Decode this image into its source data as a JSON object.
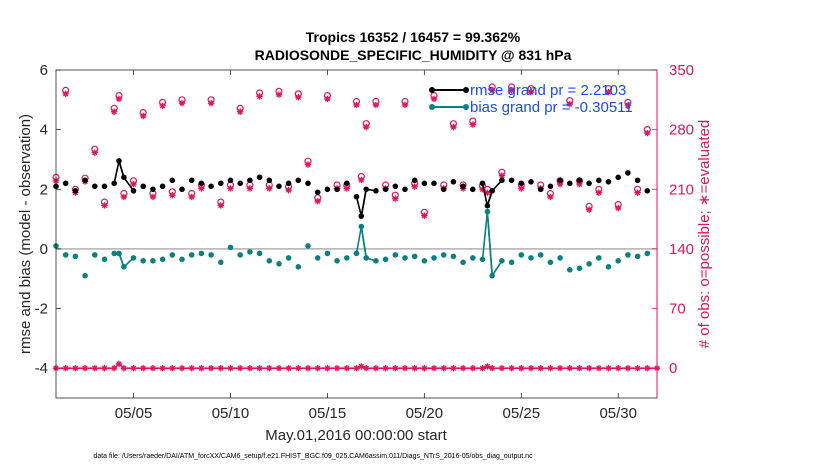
{
  "chart_data": {
    "type": "line",
    "title": "Tropics 16352 / 16457 = 99.362%",
    "subtitle": "RADIOSONDE_SPECIFIC_HUMIDITY @ 831 hPa",
    "xlabel": "May.01,2016 00:00:00 start",
    "ylabel": "rmse and bias (model - observation)",
    "y2label": "# of obs: o=possible; ∗=evaluated",
    "footnote": "data file: /Users/raeder/DAI/ATM_forcXX/CAM6_setup/f.e21.FHIST_BGC.f09_025.CAM6assim.011/Diags_NTrS_2016-05/obs_diag_output.nc",
    "xlim": [
      1.0,
      32.0
    ],
    "ylim": [
      -5,
      6
    ],
    "y2lim": [
      -35,
      350
    ],
    "xticks": [
      5,
      10,
      15,
      20,
      25,
      30
    ],
    "xtick_labels": [
      "05/05",
      "05/10",
      "05/15",
      "05/20",
      "05/25",
      "05/30"
    ],
    "yticks": [
      -4,
      -2,
      0,
      2,
      4,
      6
    ],
    "y2ticks": [
      0,
      70,
      140,
      210,
      280,
      350
    ],
    "colors": {
      "rmse": "#000000",
      "bias": "#0a8080",
      "obs": "#e0165a",
      "zero": "#b0b0b0",
      "legend_text": "#1a4cf0"
    },
    "legend": [
      "rmse grand pr = 2.2103",
      "bias grand pr = -0.30511"
    ],
    "series": [
      {
        "name": "rmse grand pr = 2.2103",
        "axis": "left",
        "x": [
          1.0,
          1.5,
          2.0,
          2.5,
          3.0,
          3.5,
          4.0,
          4.25,
          4.5,
          5.0,
          5.5,
          6.0,
          6.5,
          7.0,
          7.5,
          8.0,
          8.5,
          9.0,
          9.5,
          10.0,
          10.5,
          11.0,
          11.5,
          12.0,
          12.5,
          13.0,
          13.5,
          14.0,
          14.5,
          15.0,
          15.5,
          16.0,
          16.5,
          16.75,
          17.0,
          17.5,
          18.0,
          18.5,
          19.0,
          19.5,
          20.0,
          20.5,
          21.0,
          21.5,
          22.0,
          22.5,
          23.0,
          23.25,
          23.5,
          24.0,
          24.5,
          25.0,
          25.5,
          26.0,
          26.5,
          27.0,
          27.5,
          28.0,
          28.5,
          29.0,
          29.5,
          30.0,
          30.5,
          31.0,
          31.5
        ],
        "values": [
          2.1,
          2.2,
          1.95,
          2.3,
          2.1,
          2.1,
          2.2,
          2.95,
          2.4,
          1.95,
          2.1,
          2.0,
          2.1,
          2.3,
          2.0,
          2.3,
          2.2,
          2.1,
          2.2,
          2.3,
          2.2,
          2.3,
          2.4,
          2.3,
          2.1,
          2.2,
          2.3,
          2.2,
          1.9,
          2.0,
          2.0,
          2.2,
          1.75,
          1.1,
          2.0,
          1.95,
          2.0,
          2.1,
          2.0,
          2.3,
          2.2,
          2.2,
          2.0,
          2.25,
          2.1,
          2.0,
          2.2,
          1.45,
          1.95,
          2.3,
          2.3,
          2.2,
          2.25,
          2.0,
          2.1,
          2.3,
          2.2,
          2.3,
          2.2,
          2.3,
          2.25,
          2.4,
          2.55,
          2.3,
          1.95
        ]
      },
      {
        "name": "bias grand pr = -0.30511",
        "axis": "left",
        "x": [
          1.0,
          1.5,
          2.0,
          2.5,
          3.0,
          3.5,
          4.0,
          4.25,
          4.5,
          5.0,
          5.5,
          6.0,
          6.5,
          7.0,
          7.5,
          8.0,
          8.5,
          9.0,
          9.5,
          10.0,
          10.5,
          11.0,
          11.5,
          12.0,
          12.5,
          13.0,
          13.5,
          14.0,
          14.5,
          15.0,
          15.5,
          16.0,
          16.5,
          16.75,
          17.0,
          17.5,
          18.0,
          18.5,
          19.0,
          19.5,
          20.0,
          20.5,
          21.0,
          21.5,
          22.0,
          22.5,
          23.0,
          23.25,
          23.5,
          24.0,
          24.5,
          25.0,
          25.5,
          26.0,
          26.5,
          27.0,
          27.5,
          28.0,
          28.5,
          29.0,
          29.5,
          30.0,
          30.5,
          31.0,
          31.5
        ],
        "values": [
          0.1,
          -0.2,
          -0.25,
          -0.9,
          -0.2,
          -0.35,
          -0.15,
          -0.15,
          -0.6,
          -0.3,
          -0.4,
          -0.4,
          -0.35,
          -0.2,
          -0.35,
          -0.2,
          -0.15,
          -0.2,
          -0.45,
          0.05,
          -0.2,
          -0.1,
          -0.15,
          -0.4,
          -0.5,
          -0.3,
          -0.6,
          0.1,
          -0.3,
          -0.15,
          -0.4,
          -0.3,
          -0.15,
          0.75,
          -0.3,
          -0.4,
          -0.35,
          -0.2,
          -0.3,
          -0.25,
          -0.4,
          -0.3,
          -0.2,
          -0.25,
          -0.45,
          -0.3,
          -0.35,
          1.25,
          -0.9,
          -0.4,
          -0.45,
          -0.2,
          -0.3,
          -0.2,
          -0.45,
          -0.3,
          -0.7,
          -0.65,
          -0.5,
          -0.3,
          -0.6,
          -0.4,
          -0.2,
          -0.25,
          -0.15
        ]
      },
      {
        "name": "# of obs possible (o)",
        "axis": "right",
        "x": [
          1.0,
          1.5,
          2.0,
          2.5,
          3.0,
          3.5,
          4.0,
          4.25,
          4.5,
          5.0,
          5.5,
          6.0,
          6.5,
          7.0,
          7.5,
          8.0,
          8.5,
          9.0,
          9.5,
          10.0,
          10.5,
          11.0,
          11.5,
          12.0,
          12.5,
          13.0,
          13.5,
          14.0,
          14.5,
          15.0,
          15.5,
          16.0,
          16.5,
          16.75,
          17.0,
          17.5,
          18.0,
          18.5,
          19.0,
          19.5,
          20.0,
          20.5,
          21.0,
          21.5,
          22.0,
          22.5,
          23.0,
          23.25,
          23.5,
          24.0,
          24.5,
          25.0,
          25.5,
          26.0,
          26.5,
          27.0,
          27.5,
          28.0,
          28.5,
          29.0,
          29.5,
          30.0,
          30.5,
          31.0,
          31.5
        ],
        "values": [
          224,
          326,
          210,
          223,
          257,
          195,
          305,
          320,
          205,
          220,
          300,
          205,
          312,
          207,
          315,
          205,
          215,
          315,
          195,
          215,
          305,
          215,
          323,
          215,
          325,
          213,
          322,
          243,
          200,
          320,
          215,
          215,
          313,
          225,
          287,
          313,
          215,
          203,
          313,
          217,
          183,
          320,
          215,
          287,
          215,
          290,
          214,
          210,
          330,
          230,
          330,
          215,
          328,
          215,
          205,
          220,
          314,
          220,
          190,
          210,
          328,
          192,
          312,
          210,
          280
        ]
      },
      {
        "name": "# of obs evaluated (*)",
        "axis": "right",
        "x": [
          1.0,
          1.5,
          2.0,
          2.5,
          3.0,
          3.5,
          4.0,
          4.25,
          4.5,
          5.0,
          5.5,
          6.0,
          6.5,
          7.0,
          7.5,
          8.0,
          8.5,
          9.0,
          9.5,
          10.0,
          10.5,
          11.0,
          11.5,
          12.0,
          12.5,
          13.0,
          13.5,
          14.0,
          14.5,
          15.0,
          15.5,
          16.0,
          16.5,
          16.75,
          17.0,
          17.5,
          18.0,
          18.5,
          19.0,
          19.5,
          20.0,
          20.5,
          21.0,
          21.5,
          22.0,
          22.5,
          23.0,
          23.25,
          23.5,
          24.0,
          24.5,
          25.0,
          25.5,
          26.0,
          26.5,
          27.0,
          27.5,
          28.0,
          28.5,
          29.0,
          29.5,
          30.0,
          30.5,
          31.0,
          31.5
        ],
        "values": [
          220,
          322,
          206,
          219,
          253,
          191,
          301,
          316,
          201,
          216,
          296,
          201,
          308,
          203,
          311,
          201,
          211,
          311,
          191,
          211,
          301,
          211,
          319,
          211,
          321,
          209,
          318,
          239,
          196,
          316,
          211,
          211,
          309,
          221,
          283,
          309,
          211,
          199,
          309,
          213,
          179,
          316,
          211,
          283,
          211,
          286,
          210,
          206,
          326,
          226,
          326,
          211,
          324,
          211,
          201,
          216,
          310,
          216,
          186,
          206,
          324,
          188,
          308,
          206,
          276
        ]
      },
      {
        "name": "# of obs rejected",
        "axis": "right",
        "x": [
          1.0,
          1.5,
          2.0,
          2.5,
          3.0,
          3.5,
          4.0,
          4.25,
          4.5,
          5.0,
          5.5,
          6.0,
          6.5,
          7.0,
          7.5,
          8.0,
          8.5,
          9.0,
          9.5,
          10.0,
          10.5,
          11.0,
          11.5,
          12.0,
          12.5,
          13.0,
          13.5,
          14.0,
          14.5,
          15.0,
          15.5,
          16.0,
          16.5,
          16.75,
          17.0,
          17.5,
          18.0,
          18.5,
          19.0,
          19.5,
          20.0,
          20.5,
          21.0,
          21.5,
          22.0,
          22.5,
          23.0,
          23.25,
          23.5,
          24.0,
          24.5,
          25.0,
          25.5,
          26.0,
          26.5,
          27.0,
          27.5,
          28.0,
          28.5,
          29.0,
          29.5,
          30.0,
          30.5,
          31.0,
          31.5,
          32.0
        ],
        "values": [
          0,
          0,
          0,
          0,
          0,
          0,
          0,
          5,
          0,
          0,
          0,
          0,
          0,
          0,
          0,
          0,
          0,
          0,
          0,
          0,
          0,
          0,
          0,
          0,
          0,
          0,
          0,
          0,
          0,
          0,
          0,
          0,
          0,
          2,
          0,
          0,
          0,
          0,
          0,
          0,
          0,
          0,
          0,
          0,
          0,
          0,
          0,
          2,
          0,
          0,
          0,
          0,
          0,
          0,
          0,
          0,
          0,
          0,
          0,
          0,
          0,
          0,
          0,
          0,
          0,
          0
        ]
      }
    ]
  }
}
